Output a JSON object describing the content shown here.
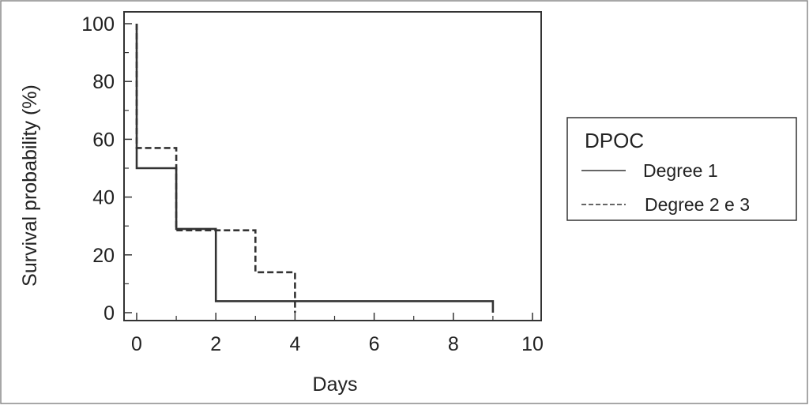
{
  "chart_data": {
    "type": "line",
    "subtype": "kaplan-meier step",
    "xlabel": "Days",
    "ylabel": "Survival probability (%)",
    "xlim": [
      0,
      10
    ],
    "ylim": [
      0,
      100
    ],
    "xticks": [
      0,
      2,
      4,
      6,
      8,
      10
    ],
    "yticks": [
      0,
      20,
      40,
      60,
      80,
      100
    ],
    "grid": false,
    "legend": {
      "title": "DPOC",
      "placement": "right"
    },
    "series": [
      {
        "name": "Degree 1",
        "style": "solid",
        "color": "#333333",
        "x": [
          0,
          0,
          1,
          1,
          2,
          2,
          9,
          9
        ],
        "y": [
          100,
          50,
          50,
          29,
          29,
          4,
          4,
          0
        ]
      },
      {
        "name": "Degree 2 e 3",
        "style": "dashed",
        "color": "#333333",
        "x": [
          0,
          0,
          1,
          1,
          3,
          3,
          4,
          4
        ],
        "y": [
          100,
          57,
          57,
          28.5,
          28.5,
          14,
          14,
          0
        ]
      }
    ]
  }
}
